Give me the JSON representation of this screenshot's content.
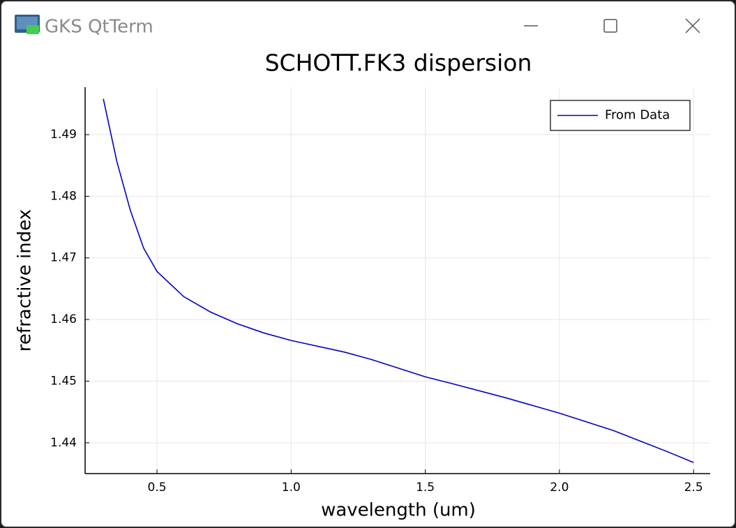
{
  "window": {
    "title": "GKS QtTerm"
  },
  "chart_data": {
    "type": "line",
    "title": "SCHOTT.FK3 dispersion",
    "xlabel": "wavelength (um)",
    "ylabel": "refractive index",
    "x": [
      0.3,
      0.35,
      0.4,
      0.45,
      0.5,
      0.6,
      0.7,
      0.8,
      0.9,
      1.0,
      1.2,
      1.3,
      1.5,
      1.6,
      1.8,
      2.0,
      2.2,
      2.4,
      2.5
    ],
    "series": [
      {
        "name": "From Data",
        "color": "#0000cc",
        "values": [
          1.4958,
          1.4857,
          1.4778,
          1.4716,
          1.4678,
          1.4637,
          1.4612,
          1.4593,
          1.4578,
          1.4566,
          1.4547,
          1.4535,
          1.4507,
          1.4496,
          1.4473,
          1.4448,
          1.442,
          1.4386,
          1.4368
        ]
      }
    ],
    "xlim": [
      0.232,
      2.562
    ],
    "xticks": [
      0.5,
      {
        "value": 1,
        "label": "1.0"
      },
      1.5,
      {
        "value": 2,
        "label": "2.0"
      },
      2.5
    ],
    "ylim": [
      1.435,
      1.4977
    ],
    "yticks": [
      1.44,
      1.45,
      1.46,
      1.47,
      1.48,
      1.49
    ],
    "grid": true,
    "legend": "top-right"
  }
}
